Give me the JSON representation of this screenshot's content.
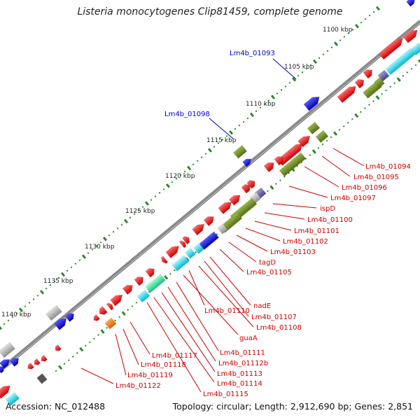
{
  "title": "Listeria monocytogenes Clip81459, complete genome",
  "footer": {
    "accession": "Accession: NC_012488",
    "summary": "Topology: circular; Length: 2,912,690 bp; Genes: 2,851"
  },
  "scale_labels": [
    "1100 kbp",
    "1105 kbp",
    "1110 kbp",
    "1115 kbp",
    "1120 kbp",
    "1125 kbp",
    "1130 kbp",
    "1135 kbp",
    "1140 kbp"
  ],
  "gene_labels_outer": [
    "Lm4b_01093",
    "Lm4b_01098"
  ],
  "gene_labels_inner": [
    "Lm4b_01094",
    "Lm4b_01095",
    "Lm4b_01096",
    "Lm4b_01097",
    "ispD",
    "Lm4b_01100",
    "Lm4b_01101",
    "Lm4b_01102",
    "Lm4b_01103",
    "tagD",
    "Lm4b_01105",
    "nadE",
    "Lm4b_01107",
    "Lm4b_01108",
    "Lm4b_01110",
    "guaA",
    "Lm4b_01111",
    "Lm4b_01112b",
    "Lm4b_01113",
    "Lm4b_01114",
    "Lm4b_01115",
    "Lm4b_01117",
    "Lm4b_01118",
    "Lm4b_01119",
    "Lm4b_01122"
  ],
  "colors": {
    "backbone": "#7a7a7a",
    "tick": "#2a8a2a",
    "gene_red": "#ee0000",
    "gene_blue": "#0000ee",
    "gene_cyan": "#00d8e8",
    "gene_olive": "#6b8e23",
    "gene_grey": "#b0b0b0",
    "gene_slate": "#6a6aaa",
    "gene_mint": "#3ee8a0",
    "gene_orange": "#ff8800",
    "label_red": "#cc0000",
    "label_blue": "#0000cc"
  }
}
